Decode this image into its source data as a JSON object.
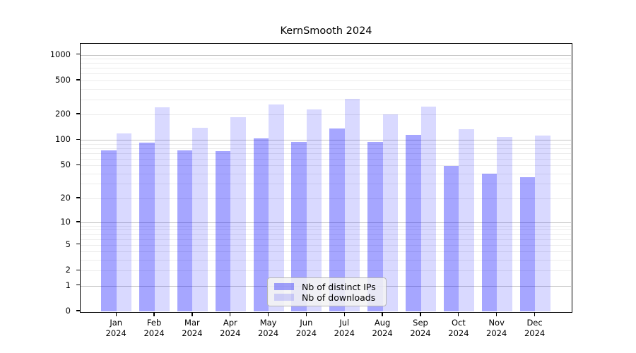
{
  "title": "KernSmooth 2024",
  "chart_data": {
    "type": "bar",
    "title": "KernSmooth 2024",
    "scale": "log1p",
    "grid": true,
    "xlabel": "",
    "ylabel": "",
    "categories": [
      "Jan",
      "Feb",
      "Mar",
      "Apr",
      "May",
      "Jun",
      "Jul",
      "Aug",
      "Sep",
      "Oct",
      "Nov",
      "Dec"
    ],
    "category_year": "2024",
    "series": [
      {
        "name": "Nb of distinct IPs",
        "color": "rgba(0,0,255,0.35)",
        "values": [
          76,
          93,
          75,
          74,
          105,
          95,
          136,
          95,
          114,
          49,
          40,
          36
        ]
      },
      {
        "name": "Nb of downloads",
        "color": "rgba(0,0,255,0.15)",
        "values": [
          120,
          243,
          138,
          184,
          260,
          229,
          303,
          201,
          247,
          135,
          108,
          112
        ]
      }
    ],
    "yticks": [
      0,
      1,
      2,
      5,
      10,
      20,
      50,
      100,
      200,
      500,
      1000
    ],
    "decade_gridlines": [
      1,
      10,
      100,
      1000
    ],
    "minor_gridlines": [
      2,
      3,
      4,
      5,
      6,
      7,
      8,
      9,
      20,
      30,
      40,
      50,
      60,
      70,
      80,
      90,
      200,
      300,
      400,
      500,
      600,
      700,
      800,
      900
    ],
    "ylim": [
      0,
      1300
    ],
    "legend_position": "lower center"
  }
}
